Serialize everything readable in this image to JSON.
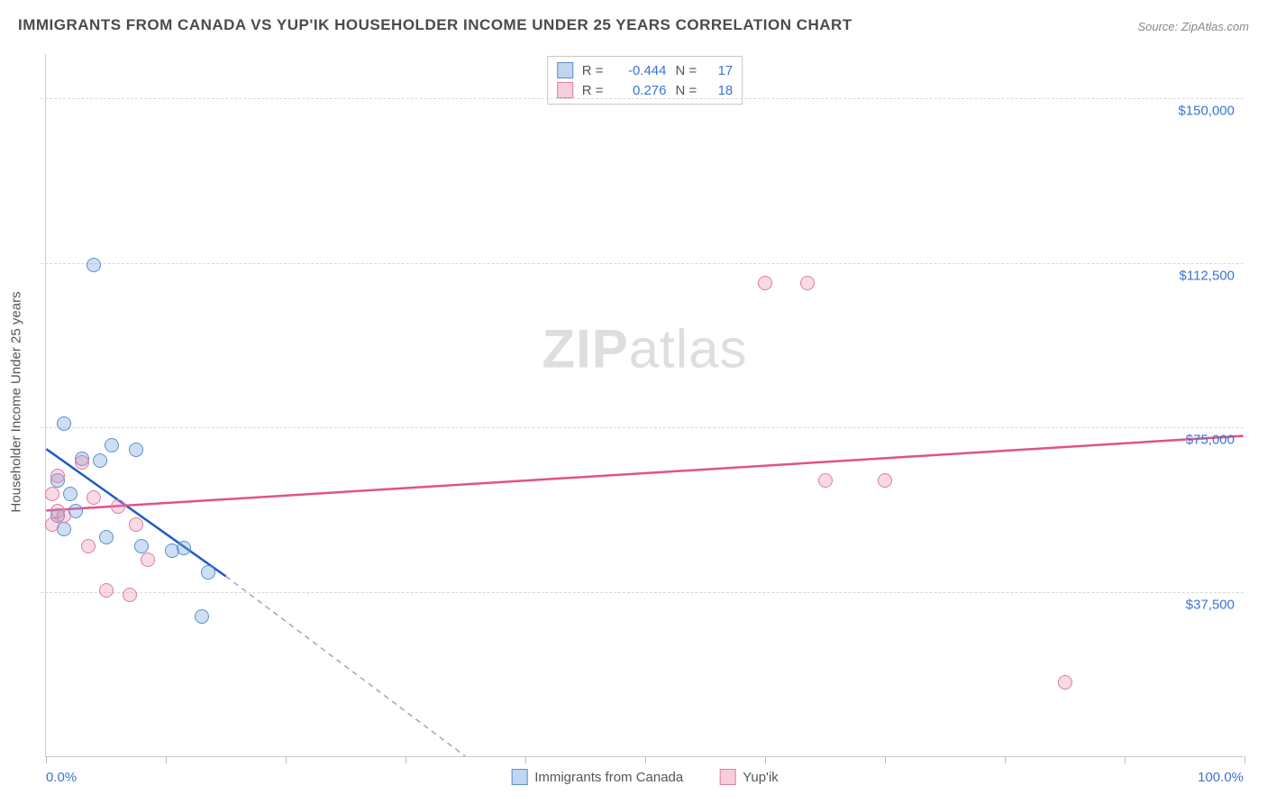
{
  "title": "IMMIGRANTS FROM CANADA VS YUP'IK HOUSEHOLDER INCOME UNDER 25 YEARS CORRELATION CHART",
  "source": "Source: ZipAtlas.com",
  "watermark_bold": "ZIP",
  "watermark_rest": "atlas",
  "chart": {
    "type": "scatter",
    "y_axis_title": "Householder Income Under 25 years",
    "xlim": [
      0,
      100
    ],
    "ylim": [
      0,
      160000
    ],
    "x_min_label": "0.0%",
    "x_max_label": "100.0%",
    "y_ticks": [
      37500,
      75000,
      112500,
      150000
    ],
    "y_tick_labels": [
      "$37,500",
      "$75,000",
      "$112,500",
      "$150,000"
    ],
    "x_ticks": [
      0,
      10,
      20,
      30,
      40,
      50,
      60,
      70,
      80,
      90,
      100
    ],
    "background_color": "#ffffff",
    "grid_color": "#d8d8d8",
    "grid_dash": "4 4",
    "axis_color": "#cccccc",
    "label_color": "#3b74d4",
    "label_fontsize": 15,
    "title_fontsize": 17,
    "title_color": "#4a4a4a",
    "marker_radius": 8,
    "series": [
      {
        "name": "Immigrants from Canada",
        "color_fill": "rgba(114,162,221,0.35)",
        "color_stroke": "#5a8fd0",
        "R": "-0.444",
        "N": "17",
        "trend": {
          "x1": 0,
          "y1": 70000,
          "x2": 15,
          "y2": 41000,
          "color": "#1f5bc4",
          "width": 2.5,
          "extrap_x2": 35,
          "extrap_y2": 0,
          "extrap_dash": "6 5",
          "extrap_color": "#9aa7b8"
        },
        "points": [
          {
            "x": 4.0,
            "y": 112000
          },
          {
            "x": 1.5,
            "y": 76000
          },
          {
            "x": 3.0,
            "y": 68000
          },
          {
            "x": 4.5,
            "y": 67500
          },
          {
            "x": 5.5,
            "y": 71000
          },
          {
            "x": 7.5,
            "y": 70000
          },
          {
            "x": 1.0,
            "y": 63000
          },
          {
            "x": 2.0,
            "y": 60000
          },
          {
            "x": 2.5,
            "y": 56000
          },
          {
            "x": 1.0,
            "y": 55000
          },
          {
            "x": 1.5,
            "y": 52000
          },
          {
            "x": 5.0,
            "y": 50000
          },
          {
            "x": 8.0,
            "y": 48000
          },
          {
            "x": 10.5,
            "y": 47000
          },
          {
            "x": 11.5,
            "y": 47500
          },
          {
            "x": 13.5,
            "y": 42000
          },
          {
            "x": 13.0,
            "y": 32000
          }
        ]
      },
      {
        "name": "Yup'ik",
        "color_fill": "rgba(231,132,168,0.3)",
        "color_stroke": "#dd7ba6",
        "R": "0.276",
        "N": "18",
        "trend": {
          "x1": 0,
          "y1": 56000,
          "x2": 100,
          "y2": 73000,
          "color": "#e0518a",
          "width": 2.5
        },
        "points": [
          {
            "x": 60.0,
            "y": 108000
          },
          {
            "x": 63.5,
            "y": 108000
          },
          {
            "x": 65.0,
            "y": 63000
          },
          {
            "x": 70.0,
            "y": 63000
          },
          {
            "x": 85.0,
            "y": 17000
          },
          {
            "x": 1.0,
            "y": 64000
          },
          {
            "x": 3.0,
            "y": 67000
          },
          {
            "x": 0.5,
            "y": 60000
          },
          {
            "x": 1.0,
            "y": 56000
          },
          {
            "x": 1.5,
            "y": 55000
          },
          {
            "x": 0.5,
            "y": 53000
          },
          {
            "x": 4.0,
            "y": 59000
          },
          {
            "x": 6.0,
            "y": 57000
          },
          {
            "x": 7.5,
            "y": 53000
          },
          {
            "x": 3.5,
            "y": 48000
          },
          {
            "x": 8.5,
            "y": 45000
          },
          {
            "x": 5.0,
            "y": 38000
          },
          {
            "x": 7.0,
            "y": 37000
          }
        ]
      }
    ],
    "legend_top_labels": {
      "R": "R =",
      "N": "N ="
    },
    "legend_bottom": [
      "Immigrants from Canada",
      "Yup'ik"
    ]
  }
}
